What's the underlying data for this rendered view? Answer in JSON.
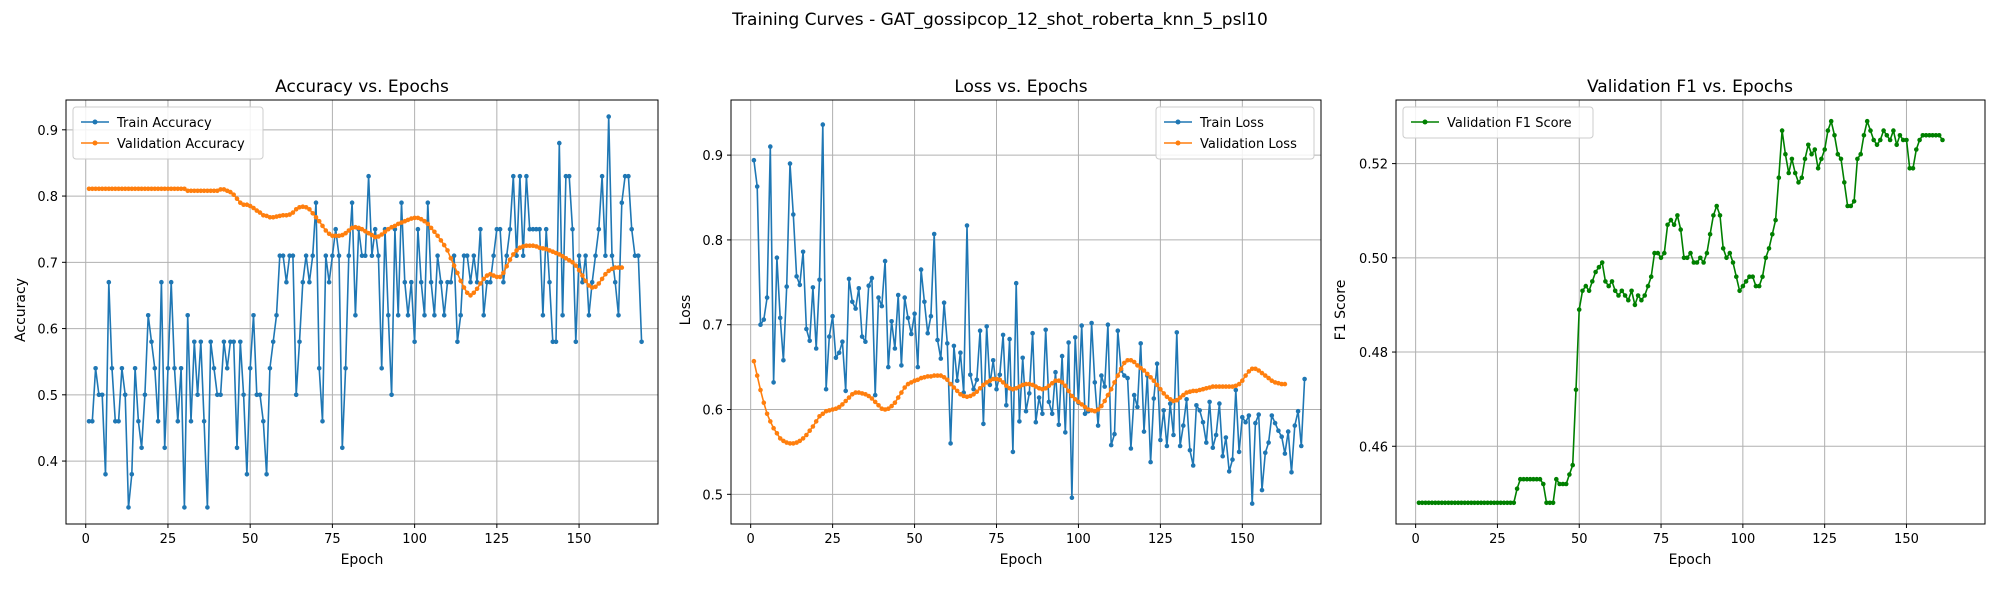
{
  "figure_title": "Training Curves - GAT_gossipcop_12_shot_roberta_knn_5_psl10",
  "colors": {
    "train": "#1f77b4",
    "validation": "#ff7f0e",
    "f1": "#008000"
  },
  "chart_data": [
    {
      "type": "line",
      "title": "Accuracy vs. Epochs",
      "xlabel": "Epoch",
      "ylabel": "Accuracy",
      "xlim": [
        -6,
        174
      ],
      "ylim": [
        0.305,
        0.945
      ],
      "xticks": [
        0,
        25,
        50,
        75,
        100,
        125,
        150
      ],
      "yticks": [
        0.4,
        0.5,
        0.6,
        0.7,
        0.8,
        0.9
      ],
      "grid": true,
      "legend": "upper-left",
      "series": [
        {
          "name": "Train Accuracy",
          "color": "#1f77b4",
          "x_start": 1,
          "values": [
            0.46,
            0.46,
            0.54,
            0.5,
            0.5,
            0.38,
            0.67,
            0.54,
            0.46,
            0.46,
            0.54,
            0.5,
            0.33,
            0.38,
            0.54,
            0.46,
            0.42,
            0.5,
            0.62,
            0.58,
            0.54,
            0.46,
            0.67,
            0.42,
            0.54,
            0.67,
            0.54,
            0.46,
            0.54,
            0.33,
            0.62,
            0.46,
            0.58,
            0.5,
            0.58,
            0.46,
            0.33,
            0.58,
            0.54,
            0.5,
            0.5,
            0.58,
            0.54,
            0.58,
            0.58,
            0.42,
            0.58,
            0.5,
            0.38,
            0.54,
            0.62,
            0.5,
            0.5,
            0.46,
            0.38,
            0.54,
            0.58,
            0.62,
            0.71,
            0.71,
            0.67,
            0.71,
            0.71,
            0.5,
            0.58,
            0.67,
            0.71,
            0.67,
            0.71,
            0.79,
            0.54,
            0.46,
            0.71,
            0.67,
            0.71,
            0.75,
            0.71,
            0.42,
            0.54,
            0.71,
            0.79,
            0.62,
            0.75,
            0.71,
            0.71,
            0.83,
            0.71,
            0.75,
            0.71,
            0.54,
            0.75,
            0.62,
            0.5,
            0.75,
            0.62,
            0.79,
            0.67,
            0.62,
            0.67,
            0.58,
            0.75,
            0.67,
            0.62,
            0.79,
            0.67,
            0.62,
            0.71,
            0.67,
            0.62,
            0.67,
            0.67,
            0.71,
            0.58,
            0.62,
            0.71,
            0.71,
            0.67,
            0.71,
            0.67,
            0.75,
            0.62,
            0.67,
            0.67,
            0.71,
            0.75,
            0.75,
            0.67,
            0.71,
            0.75,
            0.83,
            0.71,
            0.83,
            0.71,
            0.83,
            0.75,
            0.75,
            0.75,
            0.75,
            0.62,
            0.75,
            0.67,
            0.58,
            0.58,
            0.88,
            0.62,
            0.83,
            0.83,
            0.75,
            0.58,
            0.71,
            0.67,
            0.71,
            0.62,
            0.67,
            0.71,
            0.75,
            0.83,
            0.71,
            0.92,
            0.71,
            0.67,
            0.62,
            0.79,
            0.83,
            0.83,
            0.75,
            0.71,
            0.71,
            0.58
          ]
        },
        {
          "name": "Validation Accuracy",
          "color": "#ff7f0e",
          "x_start": 1,
          "values": [
            0.811,
            0.811,
            0.811,
            0.811,
            0.811,
            0.811,
            0.811,
            0.811,
            0.811,
            0.811,
            0.811,
            0.811,
            0.811,
            0.811,
            0.811,
            0.811,
            0.811,
            0.811,
            0.811,
            0.811,
            0.811,
            0.811,
            0.811,
            0.811,
            0.811,
            0.811,
            0.811,
            0.811,
            0.811,
            0.811,
            0.808,
            0.808,
            0.808,
            0.808,
            0.808,
            0.808,
            0.808,
            0.808,
            0.808,
            0.808,
            0.81,
            0.81,
            0.808,
            0.806,
            0.802,
            0.796,
            0.79,
            0.787,
            0.787,
            0.785,
            0.782,
            0.778,
            0.775,
            0.771,
            0.77,
            0.768,
            0.768,
            0.769,
            0.77,
            0.771,
            0.771,
            0.772,
            0.775,
            0.78,
            0.783,
            0.784,
            0.783,
            0.78,
            0.774,
            0.768,
            0.762,
            0.755,
            0.748,
            0.743,
            0.74,
            0.74,
            0.74,
            0.741,
            0.744,
            0.748,
            0.752,
            0.753,
            0.752,
            0.75,
            0.747,
            0.744,
            0.741,
            0.738,
            0.739,
            0.742,
            0.746,
            0.75,
            0.753,
            0.755,
            0.758,
            0.76,
            0.762,
            0.764,
            0.766,
            0.767,
            0.767,
            0.765,
            0.762,
            0.758,
            0.752,
            0.746,
            0.74,
            0.733,
            0.726,
            0.718,
            0.706,
            0.695,
            0.684,
            0.672,
            0.662,
            0.654,
            0.65,
            0.654,
            0.66,
            0.668,
            0.675,
            0.68,
            0.682,
            0.68,
            0.678,
            0.678,
            0.684,
            0.694,
            0.704,
            0.712,
            0.718,
            0.722,
            0.724,
            0.725,
            0.725,
            0.725,
            0.724,
            0.722,
            0.721,
            0.72,
            0.718,
            0.716,
            0.714,
            0.712,
            0.709,
            0.706,
            0.703,
            0.7,
            0.695,
            0.688,
            0.68,
            0.672,
            0.665,
            0.662,
            0.663,
            0.668,
            0.675,
            0.682,
            0.687,
            0.69,
            0.692,
            0.692,
            0.692
          ]
        }
      ]
    },
    {
      "type": "line",
      "title": "Loss vs. Epochs",
      "xlabel": "Epoch",
      "ylabel": "Loss",
      "xlim": [
        -6,
        174
      ],
      "ylim": [
        0.465,
        0.965
      ],
      "xticks": [
        0,
        25,
        50,
        75,
        100,
        125,
        150
      ],
      "yticks": [
        0.5,
        0.6,
        0.7,
        0.8,
        0.9
      ],
      "grid": true,
      "legend": "upper-right",
      "series": [
        {
          "name": "Train Loss",
          "color": "#1f77b4",
          "x_start": 1,
          "values": [
            0.894,
            0.863,
            0.7,
            0.706,
            0.732,
            0.91,
            0.632,
            0.779,
            0.708,
            0.658,
            0.745,
            0.89,
            0.83,
            0.757,
            0.747,
            0.786,
            0.695,
            0.681,
            0.744,
            0.672,
            0.753,
            0.936,
            0.624,
            0.686,
            0.71,
            0.661,
            0.667,
            0.68,
            0.622,
            0.754,
            0.727,
            0.719,
            0.743,
            0.686,
            0.68,
            0.746,
            0.755,
            0.617,
            0.732,
            0.722,
            0.775,
            0.65,
            0.704,
            0.672,
            0.735,
            0.652,
            0.732,
            0.708,
            0.689,
            0.713,
            0.65,
            0.765,
            0.727,
            0.69,
            0.71,
            0.807,
            0.682,
            0.66,
            0.726,
            0.678,
            0.56,
            0.675,
            0.634,
            0.667,
            0.62,
            0.817,
            0.641,
            0.624,
            0.635,
            0.693,
            0.583,
            0.698,
            0.629,
            0.658,
            0.624,
            0.641,
            0.688,
            0.605,
            0.683,
            0.55,
            0.749,
            0.586,
            0.661,
            0.598,
            0.619,
            0.69,
            0.585,
            0.614,
            0.595,
            0.694,
            0.609,
            0.595,
            0.644,
            0.582,
            0.663,
            0.573,
            0.679,
            0.496,
            0.685,
            0.608,
            0.699,
            0.595,
            0.598,
            0.702,
            0.632,
            0.581,
            0.64,
            0.627,
            0.7,
            0.558,
            0.571,
            0.693,
            0.646,
            0.64,
            0.637,
            0.554,
            0.617,
            0.603,
            0.678,
            0.574,
            0.64,
            0.538,
            0.613,
            0.654,
            0.564,
            0.599,
            0.557,
            0.607,
            0.57,
            0.691,
            0.557,
            0.581,
            0.612,
            0.552,
            0.534,
            0.605,
            0.599,
            0.585,
            0.561,
            0.609,
            0.555,
            0.57,
            0.607,
            0.545,
            0.567,
            0.527,
            0.541,
            0.623,
            0.55,
            0.591,
            0.585,
            0.593,
            0.489,
            0.584,
            0.594,
            0.505,
            0.549,
            0.561,
            0.593,
            0.584,
            0.575,
            0.568,
            0.548,
            0.574,
            0.526,
            0.581,
            0.598,
            0.557,
            0.636
          ]
        },
        {
          "name": "Validation Loss",
          "color": "#ff7f0e",
          "x_start": 1,
          "values": [
            0.657,
            0.64,
            0.623,
            0.608,
            0.595,
            0.586,
            0.578,
            0.572,
            0.566,
            0.563,
            0.561,
            0.56,
            0.56,
            0.561,
            0.563,
            0.566,
            0.57,
            0.575,
            0.58,
            0.586,
            0.592,
            0.595,
            0.598,
            0.599,
            0.6,
            0.601,
            0.603,
            0.606,
            0.61,
            0.614,
            0.618,
            0.62,
            0.62,
            0.619,
            0.618,
            0.616,
            0.613,
            0.609,
            0.605,
            0.601,
            0.6,
            0.601,
            0.604,
            0.608,
            0.614,
            0.62,
            0.626,
            0.63,
            0.632,
            0.634,
            0.635,
            0.637,
            0.638,
            0.639,
            0.639,
            0.64,
            0.64,
            0.64,
            0.638,
            0.635,
            0.63,
            0.626,
            0.622,
            0.618,
            0.616,
            0.615,
            0.616,
            0.618,
            0.621,
            0.625,
            0.629,
            0.632,
            0.634,
            0.636,
            0.636,
            0.635,
            0.632,
            0.628,
            0.625,
            0.624,
            0.625,
            0.627,
            0.629,
            0.63,
            0.63,
            0.629,
            0.627,
            0.625,
            0.624,
            0.625,
            0.628,
            0.631,
            0.634,
            0.634,
            0.632,
            0.628,
            0.622,
            0.616,
            0.612,
            0.609,
            0.606,
            0.603,
            0.6,
            0.599,
            0.598,
            0.6,
            0.604,
            0.61,
            0.617,
            0.624,
            0.632,
            0.64,
            0.648,
            0.655,
            0.658,
            0.658,
            0.656,
            0.652,
            0.649,
            0.646,
            0.642,
            0.638,
            0.634,
            0.629,
            0.624,
            0.619,
            0.615,
            0.612,
            0.61,
            0.611,
            0.614,
            0.617,
            0.62,
            0.621,
            0.622,
            0.622,
            0.623,
            0.624,
            0.625,
            0.626,
            0.627,
            0.627,
            0.627,
            0.627,
            0.627,
            0.627,
            0.627,
            0.628,
            0.63,
            0.634,
            0.64,
            0.645,
            0.648,
            0.648,
            0.646,
            0.643,
            0.64,
            0.637,
            0.634,
            0.632,
            0.631,
            0.63,
            0.63
          ]
        }
      ]
    },
    {
      "type": "line",
      "title": "Validation F1 vs. Epochs",
      "xlabel": "Epoch",
      "ylabel": "F1 Score",
      "xlim": [
        -6,
        174
      ],
      "ylim": [
        0.4435,
        0.5335
      ],
      "xticks": [
        0,
        25,
        50,
        75,
        100,
        125,
        150
      ],
      "yticks": [
        0.46,
        0.48,
        0.5,
        0.52
      ],
      "grid": true,
      "legend": "upper-left",
      "series": [
        {
          "name": "Validation F1 Score",
          "color": "#008000",
          "x_start": 1,
          "values": [
            0.448,
            0.448,
            0.448,
            0.448,
            0.448,
            0.448,
            0.448,
            0.448,
            0.448,
            0.448,
            0.448,
            0.448,
            0.448,
            0.448,
            0.448,
            0.448,
            0.448,
            0.448,
            0.448,
            0.448,
            0.448,
            0.448,
            0.448,
            0.448,
            0.448,
            0.448,
            0.448,
            0.448,
            0.448,
            0.448,
            0.451,
            0.453,
            0.453,
            0.453,
            0.453,
            0.453,
            0.453,
            0.453,
            0.452,
            0.448,
            0.448,
            0.448,
            0.453,
            0.452,
            0.452,
            0.452,
            0.454,
            0.456,
            0.472,
            0.489,
            0.493,
            0.494,
            0.493,
            0.495,
            0.497,
            0.498,
            0.499,
            0.495,
            0.494,
            0.495,
            0.493,
            0.492,
            0.493,
            0.492,
            0.491,
            0.493,
            0.49,
            0.492,
            0.491,
            0.492,
            0.494,
            0.496,
            0.501,
            0.501,
            0.5,
            0.501,
            0.507,
            0.508,
            0.507,
            0.509,
            0.506,
            0.5,
            0.5,
            0.501,
            0.499,
            0.499,
            0.5,
            0.499,
            0.501,
            0.505,
            0.509,
            0.511,
            0.509,
            0.502,
            0.5,
            0.501,
            0.499,
            0.496,
            0.493,
            0.494,
            0.495,
            0.496,
            0.496,
            0.494,
            0.494,
            0.496,
            0.5,
            0.502,
            0.505,
            0.508,
            0.517,
            0.527,
            0.522,
            0.518,
            0.521,
            0.518,
            0.516,
            0.517,
            0.521,
            0.524,
            0.522,
            0.523,
            0.519,
            0.521,
            0.523,
            0.527,
            0.529,
            0.526,
            0.522,
            0.521,
            0.516,
            0.511,
            0.511,
            0.512,
            0.521,
            0.522,
            0.526,
            0.529,
            0.527,
            0.525,
            0.524,
            0.525,
            0.527,
            0.526,
            0.525,
            0.527,
            0.524,
            0.526,
            0.525,
            0.525,
            0.519,
            0.519,
            0.523,
            0.525,
            0.526,
            0.526,
            0.526,
            0.526,
            0.526,
            0.526,
            0.525
          ]
        }
      ]
    }
  ]
}
